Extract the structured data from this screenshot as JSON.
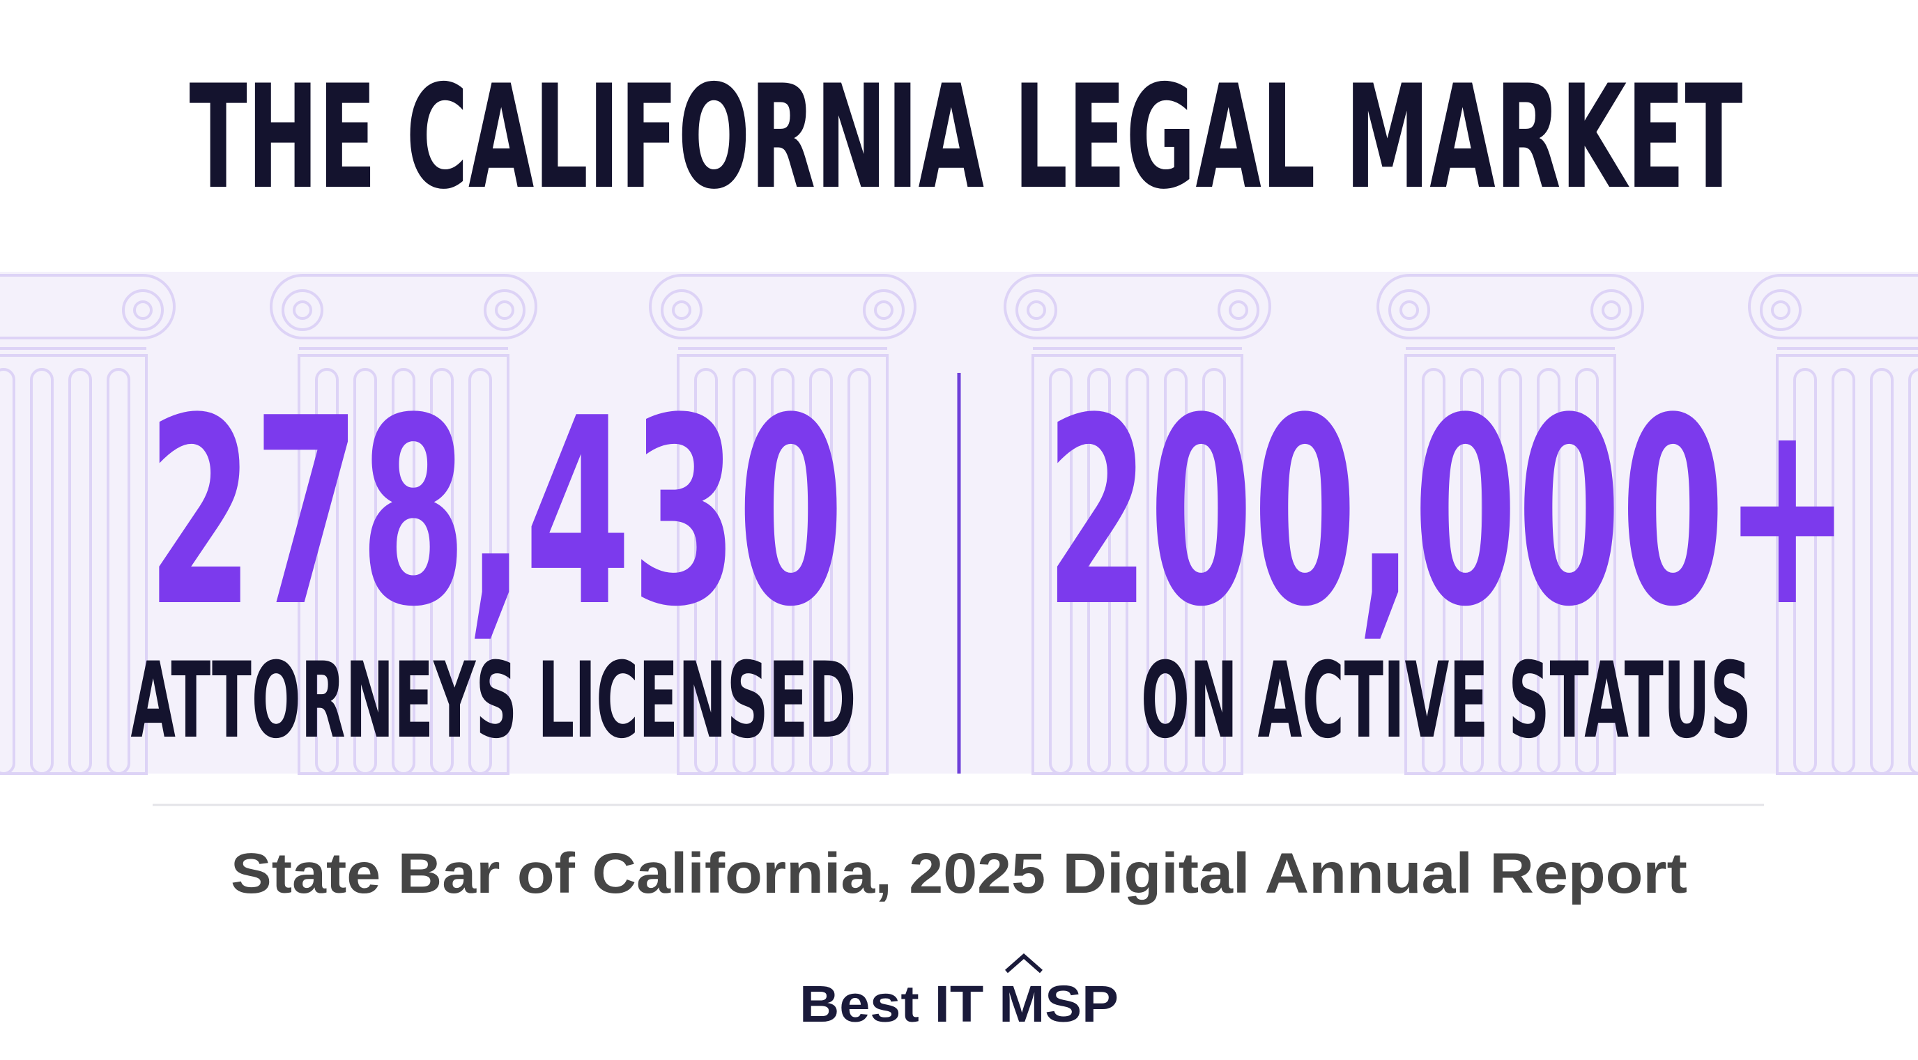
{
  "header": {
    "title": "THE CALIFORNIA LEGAL MARKET"
  },
  "stats": [
    {
      "value": "278,430",
      "label": "ATTORNEYS LICENSED"
    },
    {
      "value": "200,000+",
      "label": "ON ACTIVE STATUS"
    }
  ],
  "source": "State Bar of California, 2025 Digital Annual Report",
  "brand": "Best IT MSP"
}
